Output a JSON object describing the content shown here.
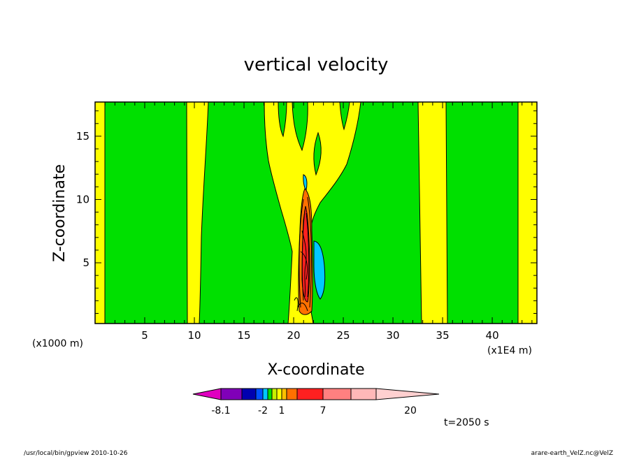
{
  "chart_data": {
    "type": "heatmap",
    "title": "vertical velocity",
    "xlabel": "X-coordinate",
    "ylabel": "Z-coordinate",
    "x_units_left": "(x1000 m)",
    "x_units_right": "(x1E4 m)",
    "xlim": [
      0,
      44.5
    ],
    "ylim": [
      0.2,
      17.7
    ],
    "x_ticks": [
      5,
      10,
      15,
      20,
      25,
      30,
      35,
      40
    ],
    "y_ticks": [
      5,
      10,
      15
    ],
    "colorbar": {
      "tick_labels": [
        "-8.1",
        "-2",
        "1",
        "7",
        "20"
      ],
      "colors": [
        "#e000c0",
        "#8000b8",
        "#0000b0",
        "#0050ff",
        "#00c8ff",
        "#00e000",
        "#c8f000",
        "#ffff00",
        "#ffc000",
        "#ff7000",
        "#ff2020",
        "#ff8080",
        "#ffb8b8",
        "#ffd0d0"
      ]
    },
    "annotation": "t=2050 s",
    "series": []
  },
  "footer": {
    "left": "/usr/local/bin/gpview  2010-10-26",
    "right": "arare-earth_VelZ.nc@VelZ"
  },
  "colors": {
    "green": "#00e000",
    "yellow": "#ffff00",
    "cyan": "#00c8ff",
    "orange": "#ff7000",
    "red": "#ff2020"
  }
}
